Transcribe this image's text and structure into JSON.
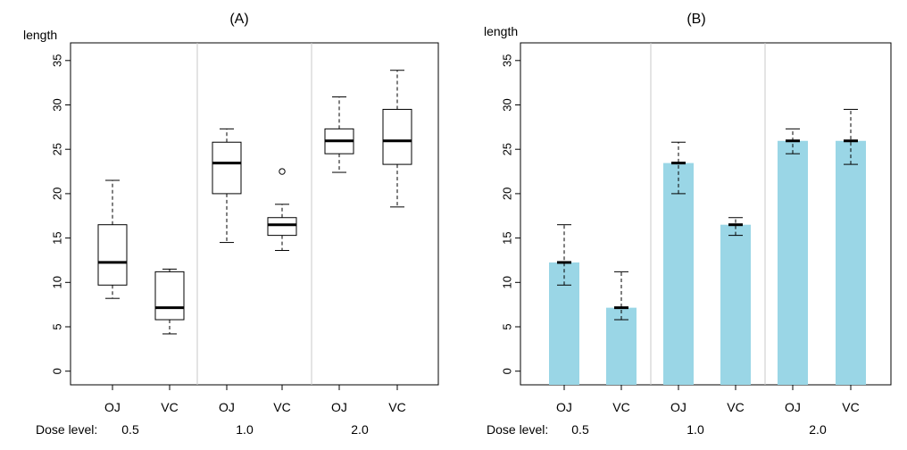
{
  "chart_data": [
    {
      "type": "boxplot",
      "title": "(A)",
      "ylabel": "length",
      "ylim": [
        0,
        35
      ],
      "yticks": [
        0,
        5,
        10,
        15,
        20,
        25,
        30,
        35
      ],
      "xlabel_prefix": "Dose level:",
      "doses": [
        "0.5",
        "1.0",
        "2.0"
      ],
      "supplements": [
        "OJ",
        "VC"
      ],
      "boxes": [
        {
          "dose": "0.5",
          "supp": "OJ",
          "min": 8.2,
          "q1": 9.7,
          "median": 12.25,
          "q3": 16.5,
          "max": 21.5,
          "outliers": []
        },
        {
          "dose": "0.5",
          "supp": "VC",
          "min": 4.2,
          "q1": 5.8,
          "median": 7.15,
          "q3": 11.2,
          "max": 11.5,
          "outliers": []
        },
        {
          "dose": "1.0",
          "supp": "OJ",
          "min": 14.5,
          "q1": 20.0,
          "median": 23.45,
          "q3": 25.8,
          "max": 27.3,
          "outliers": []
        },
        {
          "dose": "1.0",
          "supp": "VC",
          "min": 13.6,
          "q1": 15.3,
          "median": 16.5,
          "q3": 17.3,
          "max": 18.8,
          "outliers": [
            22.5
          ]
        },
        {
          "dose": "2.0",
          "supp": "OJ",
          "min": 22.4,
          "q1": 24.5,
          "median": 25.95,
          "q3": 27.3,
          "max": 30.9,
          "outliers": []
        },
        {
          "dose": "2.0",
          "supp": "VC",
          "min": 18.5,
          "q1": 23.3,
          "median": 25.95,
          "q3": 29.5,
          "max": 33.9,
          "outliers": []
        }
      ]
    },
    {
      "type": "bar",
      "title": "(B)",
      "ylabel": "length",
      "ylim": [
        0,
        35
      ],
      "yticks": [
        0,
        5,
        10,
        15,
        20,
        25,
        30,
        35
      ],
      "xlabel_prefix": "Dose level:",
      "doses": [
        "0.5",
        "1.0",
        "2.0"
      ],
      "supplements": [
        "OJ",
        "VC"
      ],
      "bar_color": "#9AD6E6",
      "bars": [
        {
          "dose": "0.5",
          "supp": "OJ",
          "value": 12.25,
          "err_low": 9.7,
          "err_high": 16.5
        },
        {
          "dose": "0.5",
          "supp": "VC",
          "value": 7.15,
          "err_low": 5.8,
          "err_high": 11.2
        },
        {
          "dose": "1.0",
          "supp": "OJ",
          "value": 23.45,
          "err_low": 20.0,
          "err_high": 25.8
        },
        {
          "dose": "1.0",
          "supp": "VC",
          "value": 16.5,
          "err_low": 15.3,
          "err_high": 17.3
        },
        {
          "dose": "2.0",
          "supp": "OJ",
          "value": 25.95,
          "err_low": 24.5,
          "err_high": 27.3
        },
        {
          "dose": "2.0",
          "supp": "VC",
          "value": 25.95,
          "err_low": 23.3,
          "err_high": 29.5
        }
      ]
    }
  ]
}
